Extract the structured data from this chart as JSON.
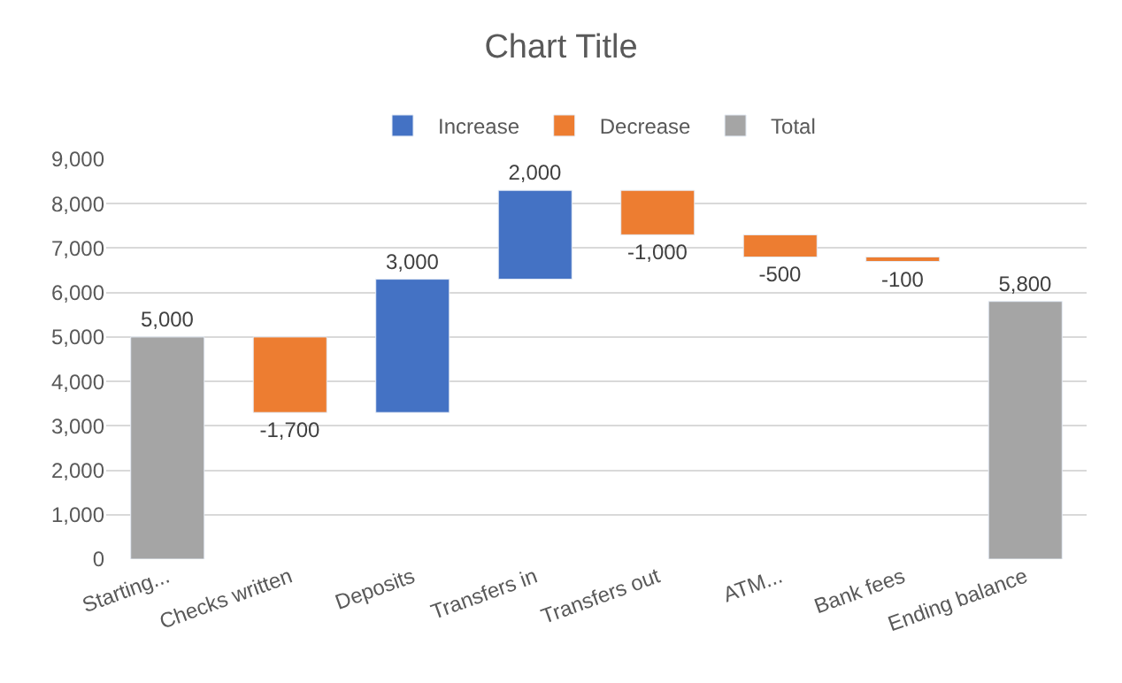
{
  "chart_data": {
    "type": "bar",
    "title": "Chart Title",
    "categories": [
      "Starting...",
      "Checks written",
      "Deposits",
      "Transfers in",
      "Transfers out",
      "ATM...",
      "Bank fees",
      "Ending balance"
    ],
    "series": [
      {
        "name": "Increase",
        "color": "#4472c4",
        "values": [
          null,
          null,
          3000,
          2000,
          null,
          null,
          null,
          null
        ],
        "base": [
          null,
          null,
          3300,
          6300,
          null,
          null,
          null,
          null
        ],
        "value_labels": [
          null,
          null,
          "3,000",
          "2,000",
          null,
          null,
          null,
          null
        ]
      },
      {
        "name": "Decrease",
        "color": "#ed7d31",
        "values": [
          null,
          -1700,
          null,
          null,
          -1000,
          -500,
          -100,
          null
        ],
        "base": [
          null,
          5000,
          null,
          null,
          8300,
          7300,
          6800,
          null
        ],
        "value_labels": [
          null,
          "-1,700",
          null,
          null,
          "-1,000",
          "-500",
          "-100",
          null
        ]
      },
      {
        "name": "Total",
        "color": "#a5a5a5",
        "values": [
          5000,
          null,
          null,
          null,
          null,
          null,
          null,
          5800
        ],
        "base": [
          0,
          null,
          null,
          null,
          null,
          null,
          null,
          0
        ],
        "value_labels": [
          "5,000",
          null,
          null,
          null,
          null,
          null,
          null,
          "5,800"
        ]
      }
    ],
    "ylim": [
      0,
      9000
    ],
    "yticks": [
      {
        "value": 0,
        "label": "0"
      },
      {
        "value": 1000,
        "label": "1,000"
      },
      {
        "value": 2000,
        "label": "2,000"
      },
      {
        "value": 3000,
        "label": "3,000"
      },
      {
        "value": 4000,
        "label": "4,000"
      },
      {
        "value": 5000,
        "label": "5,000"
      },
      {
        "value": 6000,
        "label": "6,000"
      },
      {
        "value": 7000,
        "label": "7,000"
      },
      {
        "value": 8000,
        "label": "8,000"
      },
      {
        "value": 9000,
        "label": "9,000"
      }
    ],
    "grid": "y",
    "legend": "top"
  }
}
